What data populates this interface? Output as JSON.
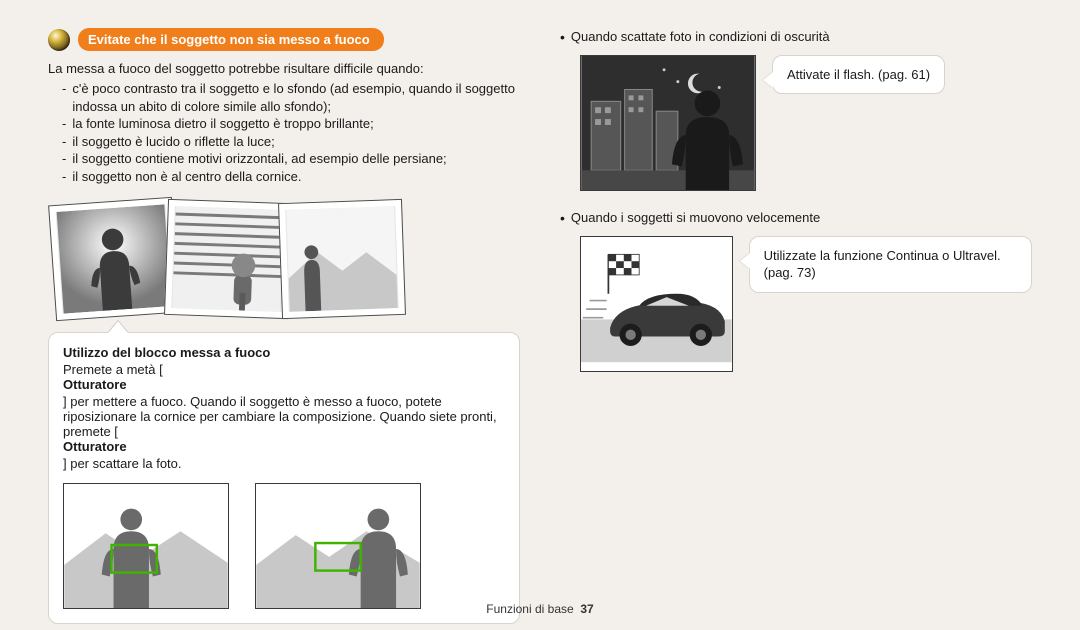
{
  "heading": "Evitate che il soggetto non sia messo a fuoco",
  "left": {
    "intro": "La messa a fuoco del soggetto potrebbe risultare difficile quando:",
    "items": [
      "c'è poco contrasto tra il soggetto e lo sfondo (ad esempio, quando il soggetto indossa un abito di colore simile allo sfondo);",
      "la fonte luminosa dietro il soggetto è troppo brillante;",
      "il soggetto è lucido o riflette la luce;",
      "il soggetto contiene motivi orizzontali, ad esempio delle persiane;",
      "il soggetto non è al centro della cornice."
    ],
    "info_title": "Utilizzo del blocco messa a fuoco",
    "info_body_html": "Premete a metà [<b>Otturatore</b>] per mettere a fuoco. Quando il soggetto è messo a fuoco, potete riposizionare la cornice per cambiare la composizione. Quando siete pronti, premete [<b>Otturatore</b>] per scattare la foto.",
    "focus_box_color": "#3fb400"
  },
  "right": {
    "row1_label": "Quando scattate foto in condizioni di oscurità",
    "row1_callout": "Attivate il flash. (pag. 61)",
    "row2_label": "Quando i soggetti si muovono velocemente",
    "row2_callout": "Utilizzate la funzione Continua o Ultravel. (pag. 73)"
  },
  "footer": {
    "section": "Funzioni di base",
    "page": "37"
  },
  "palette": {
    "orange": "#f07f1b",
    "page_bg": "#f3f0eb",
    "frame_border": "#3a3a3a",
    "silhouette": "#4d4d4d",
    "dark_silhouette": "#262626",
    "sky_gradient_top": "#ffffff",
    "sky_gradient_bottom": "#8a8a8a",
    "mountain": "#c6c6c6",
    "night_bg": "#2e2e2e"
  }
}
